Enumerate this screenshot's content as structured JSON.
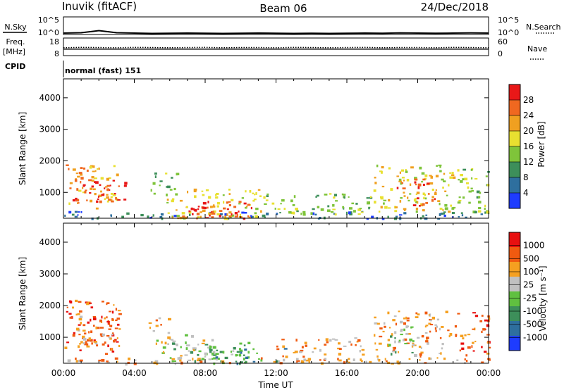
{
  "header": {
    "station": "Inuvik (fitACF)",
    "beam": "Beam 06",
    "date": "24/Dec/2018",
    "cpid_label": "CPID",
    "cpid_value": "normal (fast) 151"
  },
  "colors": {
    "power_scale": [
      "#1e3cff",
      "#2e6f9e",
      "#3d8f5a",
      "#7fc43a",
      "#e8e030",
      "#f0a020",
      "#f06820",
      "#e81818"
    ],
    "velocity_scale": [
      "#e81010",
      "#f05a10",
      "#f5a020",
      "#c0c0c0",
      "#60c040",
      "#3d8f5a",
      "#2e6f9e",
      "#1e3cff"
    ]
  },
  "chart_data": [
    {
      "type": "line",
      "name": "status-noise-search",
      "left_label": "N.Sky",
      "right_label": "N.Search",
      "left_ticks": [
        "10^5",
        "10^0"
      ],
      "right_ticks": [
        "10^5",
        "10^0"
      ],
      "series": [
        {
          "values": [
            0.08,
            0.1,
            0.22,
            0.1,
            0.08,
            0.06,
            0.07,
            0.08,
            0.07,
            0.06,
            0.07,
            0.08,
            0.07,
            0.06,
            0.07,
            0.06,
            0.07,
            0.08,
            0.07,
            0.09,
            0.08,
            0.07,
            0.08,
            0.09,
            0.08
          ]
        }
      ]
    },
    {
      "type": "line",
      "name": "status-freq-nave",
      "left_label_lines": [
        "Freq.",
        "[MHz]"
      ],
      "right_label": "Nave",
      "left_ticks": [
        "18",
        "8"
      ],
      "right_ticks": [
        "60",
        "0"
      ],
      "series": [
        {
          "style": "dotted",
          "values": [
            0.45,
            0.47,
            0.46,
            0.45,
            0.47,
            0.46,
            0.45,
            0.46,
            0.47,
            0.45,
            0.46,
            0.46,
            0.45,
            0.47,
            0.46,
            0.45,
            0.46,
            0.47,
            0.45,
            0.46,
            0.46,
            0.45,
            0.47,
            0.46,
            0.45
          ]
        },
        {
          "style": "solid",
          "values": [
            0.37,
            0.37,
            0.37,
            0.37,
            0.37,
            0.37,
            0.37,
            0.37,
            0.37,
            0.37,
            0.37,
            0.37,
            0.37,
            0.37,
            0.37,
            0.37,
            0.37,
            0.37,
            0.37,
            0.37,
            0.37,
            0.37,
            0.37,
            0.37,
            0.37
          ]
        }
      ]
    },
    {
      "type": "heatmap",
      "name": "power",
      "ylabel": "Slant Range [km]",
      "ylim": [
        180,
        4600
      ],
      "yticks": [
        1000,
        2000,
        3000,
        4000
      ],
      "xlim": [
        0,
        24
      ],
      "colorbar": {
        "label": "Power [dB]",
        "ticks": [
          "28",
          "24",
          "20",
          "16",
          "12",
          "8",
          "4"
        ]
      },
      "regions": [
        {
          "x": [
            0.0,
            3.0
          ],
          "r": [
            500,
            1900
          ],
          "level": 5
        },
        {
          "x": [
            0.5,
            3.5
          ],
          "r": [
            700,
            1500
          ],
          "level": 7
        },
        {
          "x": [
            0.0,
            24.0
          ],
          "r": [
            180,
            420
          ],
          "level": 1
        },
        {
          "x": [
            4.8,
            6.4
          ],
          "r": [
            900,
            1650
          ],
          "level": 3
        },
        {
          "x": [
            5.8,
            11.2
          ],
          "r": [
            200,
            1150
          ],
          "level": 4
        },
        {
          "x": [
            6.4,
            10.6
          ],
          "r": [
            200,
            800
          ],
          "level": 6
        },
        {
          "x": [
            6.8,
            10.2
          ],
          "r": [
            200,
            560
          ],
          "level": 7
        },
        {
          "x": [
            11.2,
            17.5
          ],
          "r": [
            300,
            1000
          ],
          "level": 3
        },
        {
          "x": [
            17.5,
            22.0
          ],
          "r": [
            400,
            1900
          ],
          "level": 4
        },
        {
          "x": [
            18.6,
            21.0
          ],
          "r": [
            600,
            1450
          ],
          "level": 6
        },
        {
          "x": [
            22.2,
            24.0
          ],
          "r": [
            300,
            1800
          ],
          "level": 3
        }
      ]
    },
    {
      "type": "heatmap",
      "name": "velocity",
      "ylabel": "Slant Range [km]",
      "xlabel": "Time UT",
      "ylim": [
        180,
        4600
      ],
      "yticks": [
        1000,
        2000,
        3000,
        4000
      ],
      "xlim": [
        0,
        24
      ],
      "xticks": [
        "00:00",
        "04:00",
        "08:00",
        "12:00",
        "16:00",
        "20:00",
        "00:00"
      ],
      "colorbar": {
        "label": "Velocity [m s⁻¹]",
        "ticks": [
          "1000",
          "500",
          "100",
          "25",
          "-25",
          "-100",
          "-500",
          "-1000"
        ]
      },
      "regions": [
        {
          "x": [
            0.0,
            3.2
          ],
          "r": [
            500,
            2200
          ],
          "level": 1
        },
        {
          "x": [
            0.3,
            2.8
          ],
          "r": [
            700,
            1800
          ],
          "level": 2
        },
        {
          "x": [
            4.8,
            6.0
          ],
          "r": [
            1100,
            1650
          ],
          "level": 2
        },
        {
          "x": [
            5.0,
            8.5
          ],
          "r": [
            200,
            1100
          ],
          "level": 3
        },
        {
          "x": [
            6.0,
            10.5
          ],
          "r": [
            200,
            900
          ],
          "level": 4
        },
        {
          "x": [
            8.0,
            12.5
          ],
          "r": [
            200,
            700
          ],
          "level": 5
        },
        {
          "x": [
            12.0,
            17.0
          ],
          "r": [
            250,
            1000
          ],
          "level": 2
        },
        {
          "x": [
            17.5,
            21.8
          ],
          "r": [
            400,
            1900
          ],
          "level": 2
        },
        {
          "x": [
            18.2,
            19.8
          ],
          "r": [
            500,
            1400
          ],
          "level": 4
        },
        {
          "x": [
            22.0,
            24.0
          ],
          "r": [
            300,
            1800
          ],
          "level": 1
        },
        {
          "x": [
            0.0,
            24.0
          ],
          "r": [
            180,
            380
          ],
          "level": 2
        }
      ]
    }
  ]
}
